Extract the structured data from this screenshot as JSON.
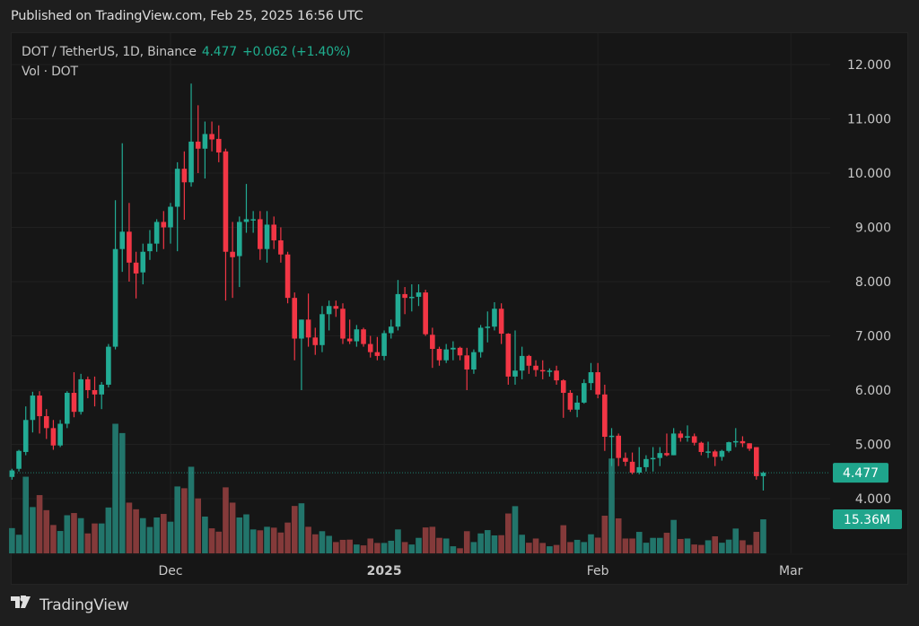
{
  "header": {
    "published": "Published on TradingView.com, Feb 25, 2025 16:56 UTC"
  },
  "legend": {
    "symbol": "DOT / TetherUS, 1D, Binance",
    "last": "4.477",
    "change": "+0.062 (+1.40%)",
    "volume_label": "Vol · DOT"
  },
  "footer": {
    "brand": "TradingView"
  },
  "colors": {
    "up": "#22ab94",
    "down": "#f23645",
    "vol_up": "#22756b",
    "vol_down": "#843a3a",
    "background": "#161616"
  },
  "chart_data": {
    "type": "candlestick",
    "title": "DOT / TetherUS, 1D, Binance",
    "ylim": [
      4.0,
      12.0
    ],
    "yticks": [
      "12.000",
      "11.000",
      "10.000",
      "9.000",
      "8.000",
      "7.000",
      "6.000",
      "5.000",
      "4.000"
    ],
    "xticks": [
      {
        "label": "Dec",
        "date": "2024-12-01",
        "bold": false
      },
      {
        "label": "2025",
        "date": "2025-01-01",
        "bold": true
      },
      {
        "label": "Feb",
        "date": "2025-02-01",
        "bold": false
      },
      {
        "label": "Mar",
        "date": "2025-03-01",
        "bold": false
      }
    ],
    "last_price_label": "4.477",
    "last_volume_label": "15.36M",
    "grid": true,
    "columns": [
      "date",
      "open",
      "high",
      "low",
      "close",
      "volume_M"
    ],
    "candles": [
      [
        "2024-11-08",
        4.4,
        4.55,
        4.35,
        4.52,
        11.4
      ],
      [
        "2024-11-09",
        4.55,
        4.9,
        4.5,
        4.88,
        8.4
      ],
      [
        "2024-11-10",
        4.86,
        5.7,
        4.8,
        5.45,
        34.6
      ],
      [
        "2024-11-11",
        5.45,
        5.97,
        5.22,
        5.9,
        20.9
      ],
      [
        "2024-11-12",
        5.9,
        5.98,
        5.2,
        5.52,
        26.3
      ],
      [
        "2024-11-13",
        5.52,
        5.65,
        5.1,
        5.3,
        19.5
      ],
      [
        "2024-11-14",
        5.3,
        5.45,
        4.9,
        4.98,
        12.8
      ],
      [
        "2024-11-15",
        4.98,
        5.45,
        4.95,
        5.38,
        10.1
      ],
      [
        "2024-11-16",
        5.38,
        5.98,
        5.3,
        5.95,
        17.2
      ],
      [
        "2024-11-17",
        5.95,
        6.33,
        5.5,
        5.6,
        18.2
      ],
      [
        "2024-11-18",
        5.6,
        6.3,
        5.55,
        6.2,
        15.9
      ],
      [
        "2024-11-19",
        6.2,
        6.25,
        5.85,
        6.0,
        9.0
      ],
      [
        "2024-11-20",
        6.0,
        6.25,
        5.7,
        5.92,
        13.5
      ],
      [
        "2024-11-21",
        5.92,
        6.15,
        5.65,
        6.1,
        13.5
      ],
      [
        "2024-11-22",
        6.1,
        6.85,
        6.05,
        6.8,
        20.7
      ],
      [
        "2024-11-23",
        6.8,
        9.5,
        6.75,
        8.6,
        58.5
      ],
      [
        "2024-11-24",
        8.6,
        10.55,
        8.18,
        8.92,
        54.3
      ],
      [
        "2024-11-25",
        8.92,
        9.45,
        8.0,
        8.35,
        22.9
      ],
      [
        "2024-11-26",
        8.35,
        8.55,
        7.69,
        8.15,
        19.9
      ],
      [
        "2024-11-27",
        8.17,
        8.7,
        7.95,
        8.55,
        15.9
      ],
      [
        "2024-11-28",
        8.56,
        8.95,
        8.4,
        8.7,
        11.9
      ],
      [
        "2024-11-29",
        8.7,
        9.15,
        8.55,
        9.1,
        16.2
      ],
      [
        "2024-11-30",
        9.1,
        9.3,
        8.6,
        9.0,
        17.8
      ],
      [
        "2024-12-01",
        9.0,
        9.45,
        8.7,
        9.38,
        14.3
      ],
      [
        "2024-12-02",
        9.38,
        10.2,
        8.56,
        10.08,
        30.2
      ],
      [
        "2024-12-03",
        10.08,
        10.4,
        9.14,
        9.83,
        29.4
      ],
      [
        "2024-12-04",
        9.83,
        11.65,
        9.75,
        10.58,
        39.1
      ],
      [
        "2024-12-05",
        10.58,
        11.25,
        10.0,
        10.45,
        24.8
      ],
      [
        "2024-12-06",
        10.45,
        10.95,
        9.9,
        10.72,
        16.6
      ],
      [
        "2024-12-07",
        10.72,
        10.95,
        10.4,
        10.62,
        11.3
      ],
      [
        "2024-12-08",
        10.63,
        10.88,
        10.2,
        10.38,
        9.8
      ],
      [
        "2024-12-09",
        10.4,
        10.45,
        7.65,
        8.55,
        29.8
      ],
      [
        "2024-12-10",
        8.55,
        9.1,
        7.7,
        8.45,
        22.9
      ],
      [
        "2024-12-11",
        8.47,
        9.2,
        7.9,
        9.1,
        16.2
      ],
      [
        "2024-12-12",
        9.1,
        9.8,
        8.9,
        9.15,
        17.6
      ],
      [
        "2024-12-13",
        9.13,
        9.3,
        8.9,
        9.15,
        10.8
      ],
      [
        "2024-12-14",
        9.15,
        9.3,
        8.4,
        8.6,
        10.4
      ],
      [
        "2024-12-15",
        8.6,
        9.3,
        8.35,
        9.05,
        12.0
      ],
      [
        "2024-12-16",
        9.05,
        9.2,
        8.6,
        8.76,
        11.6
      ],
      [
        "2024-12-17",
        8.76,
        9.0,
        8.35,
        8.5,
        9.4
      ],
      [
        "2024-12-18",
        8.5,
        8.55,
        7.6,
        7.7,
        13.9
      ],
      [
        "2024-12-19",
        7.7,
        7.8,
        6.55,
        6.95,
        21.4
      ],
      [
        "2024-12-20",
        6.95,
        7.3,
        6.0,
        7.3,
        22.6
      ],
      [
        "2024-12-21",
        7.3,
        7.78,
        6.8,
        6.97,
        12.0
      ],
      [
        "2024-12-22",
        6.97,
        7.15,
        6.65,
        6.83,
        8.6
      ],
      [
        "2024-12-23",
        6.83,
        7.55,
        6.7,
        7.4,
        10.0
      ],
      [
        "2024-12-24",
        7.4,
        7.65,
        7.1,
        7.55,
        7.9
      ],
      [
        "2024-12-25",
        7.55,
        7.65,
        7.35,
        7.5,
        5.1
      ],
      [
        "2024-12-26",
        7.5,
        7.6,
        6.85,
        6.95,
        6.1
      ],
      [
        "2024-12-27",
        6.95,
        7.3,
        6.85,
        6.9,
        6.2
      ],
      [
        "2024-12-28",
        6.9,
        7.2,
        6.8,
        7.12,
        4.0
      ],
      [
        "2024-12-29",
        7.12,
        7.15,
        6.8,
        6.85,
        3.6
      ],
      [
        "2024-12-30",
        6.85,
        7.0,
        6.6,
        6.7,
        6.7
      ],
      [
        "2024-12-31",
        6.7,
        6.98,
        6.55,
        6.63,
        4.7
      ],
      [
        "2025-01-01",
        6.63,
        7.1,
        6.55,
        7.05,
        4.7
      ],
      [
        "2025-01-02",
        7.05,
        7.3,
        6.95,
        7.17,
        5.7
      ],
      [
        "2025-01-03",
        7.17,
        8.03,
        7.1,
        7.77,
        10.8
      ],
      [
        "2025-01-04",
        7.77,
        7.9,
        7.4,
        7.7,
        5.1
      ],
      [
        "2025-01-05",
        7.7,
        7.95,
        7.45,
        7.72,
        4.0
      ],
      [
        "2025-01-06",
        7.72,
        7.95,
        7.55,
        7.8,
        7.0
      ],
      [
        "2025-01-07",
        7.8,
        7.85,
        7.0,
        7.03,
        11.7
      ],
      [
        "2025-01-08",
        7.02,
        7.15,
        6.41,
        6.76,
        12.0
      ],
      [
        "2025-01-09",
        6.76,
        6.8,
        6.45,
        6.55,
        7.0
      ],
      [
        "2025-01-10",
        6.55,
        6.85,
        6.5,
        6.75,
        6.7
      ],
      [
        "2025-01-11",
        6.75,
        6.9,
        6.55,
        6.78,
        3.2
      ],
      [
        "2025-01-12",
        6.78,
        6.8,
        6.55,
        6.64,
        2.3
      ],
      [
        "2025-01-13",
        6.64,
        6.78,
        6.0,
        6.38,
        10.0
      ],
      [
        "2025-01-14",
        6.38,
        6.75,
        6.3,
        6.7,
        5.1
      ],
      [
        "2025-01-15",
        6.7,
        7.2,
        6.6,
        7.15,
        9.0
      ],
      [
        "2025-01-16",
        7.15,
        7.45,
        6.88,
        7.17,
        10.5
      ],
      [
        "2025-01-17",
        7.17,
        7.62,
        7.1,
        7.5,
        8.1
      ],
      [
        "2025-01-18",
        7.5,
        7.6,
        6.85,
        7.04,
        8.2
      ],
      [
        "2025-01-19",
        7.04,
        7.05,
        6.1,
        6.25,
        18.0
      ],
      [
        "2025-01-20",
        6.25,
        7.1,
        6.1,
        6.36,
        21.3
      ],
      [
        "2025-01-21",
        6.36,
        6.8,
        6.2,
        6.63,
        8.4
      ],
      [
        "2025-01-22",
        6.63,
        6.65,
        6.3,
        6.45,
        4.8
      ],
      [
        "2025-01-23",
        6.45,
        6.55,
        6.25,
        6.37,
        6.7
      ],
      [
        "2025-01-24",
        6.37,
        6.55,
        6.2,
        6.35,
        4.7
      ],
      [
        "2025-01-25",
        6.35,
        6.4,
        6.25,
        6.36,
        3.2
      ],
      [
        "2025-01-26",
        6.36,
        6.45,
        6.1,
        6.18,
        3.8
      ],
      [
        "2025-01-27",
        6.18,
        6.2,
        5.49,
        5.95,
        12.7
      ],
      [
        "2025-01-28",
        5.95,
        6.0,
        5.6,
        5.64,
        5.1
      ],
      [
        "2025-01-29",
        5.64,
        5.9,
        5.5,
        5.77,
        6.1
      ],
      [
        "2025-01-30",
        5.77,
        6.2,
        5.75,
        6.13,
        5.1
      ],
      [
        "2025-01-31",
        6.13,
        6.5,
        6.0,
        6.33,
        8.6
      ],
      [
        "2025-02-01",
        6.33,
        6.5,
        5.85,
        5.92,
        7.1
      ],
      [
        "2025-02-02",
        5.92,
        6.1,
        4.88,
        5.14,
        17.0
      ],
      [
        "2025-02-03",
        5.14,
        5.3,
        4.6,
        5.16,
        42.8
      ],
      [
        "2025-02-04",
        5.16,
        5.2,
        4.6,
        4.75,
        15.8
      ],
      [
        "2025-02-05",
        4.75,
        4.85,
        4.6,
        4.68,
        6.7
      ],
      [
        "2025-02-06",
        4.68,
        4.85,
        4.45,
        4.48,
        6.7
      ],
      [
        "2025-02-07",
        4.48,
        4.95,
        4.45,
        4.58,
        9.7
      ],
      [
        "2025-02-08",
        4.58,
        4.8,
        4.5,
        4.73,
        4.8
      ],
      [
        "2025-02-09",
        4.73,
        4.95,
        4.5,
        4.75,
        7.0
      ],
      [
        "2025-02-10",
        4.75,
        4.95,
        4.6,
        4.84,
        7.0
      ],
      [
        "2025-02-11",
        4.84,
        5.2,
        4.78,
        4.8,
        9.3
      ],
      [
        "2025-02-12",
        4.8,
        5.3,
        4.8,
        5.2,
        15.1
      ],
      [
        "2025-02-13",
        5.2,
        5.25,
        5.05,
        5.12,
        6.5
      ],
      [
        "2025-02-14",
        5.13,
        5.35,
        5.05,
        5.15,
        6.7
      ],
      [
        "2025-02-15",
        5.15,
        5.2,
        4.98,
        5.03,
        4.0
      ],
      [
        "2025-02-16",
        5.03,
        5.05,
        4.8,
        4.86,
        3.8
      ],
      [
        "2025-02-17",
        4.86,
        5.05,
        4.75,
        4.87,
        5.9
      ],
      [
        "2025-02-18",
        4.87,
        4.9,
        4.6,
        4.77,
        7.7
      ],
      [
        "2025-02-19",
        4.77,
        4.9,
        4.7,
        4.88,
        4.8
      ],
      [
        "2025-02-20",
        4.88,
        5.05,
        4.85,
        5.04,
        6.2
      ],
      [
        "2025-02-21",
        5.04,
        5.3,
        4.95,
        5.06,
        11.2
      ],
      [
        "2025-02-22",
        5.06,
        5.15,
        4.95,
        5.02,
        5.9
      ],
      [
        "2025-02-23",
        5.02,
        5.02,
        4.88,
        4.92,
        3.8
      ],
      [
        "2025-02-24",
        4.95,
        4.95,
        4.35,
        4.415,
        9.7
      ],
      [
        "2025-02-25",
        4.415,
        4.5,
        4.15,
        4.477,
        15.36
      ]
    ]
  }
}
